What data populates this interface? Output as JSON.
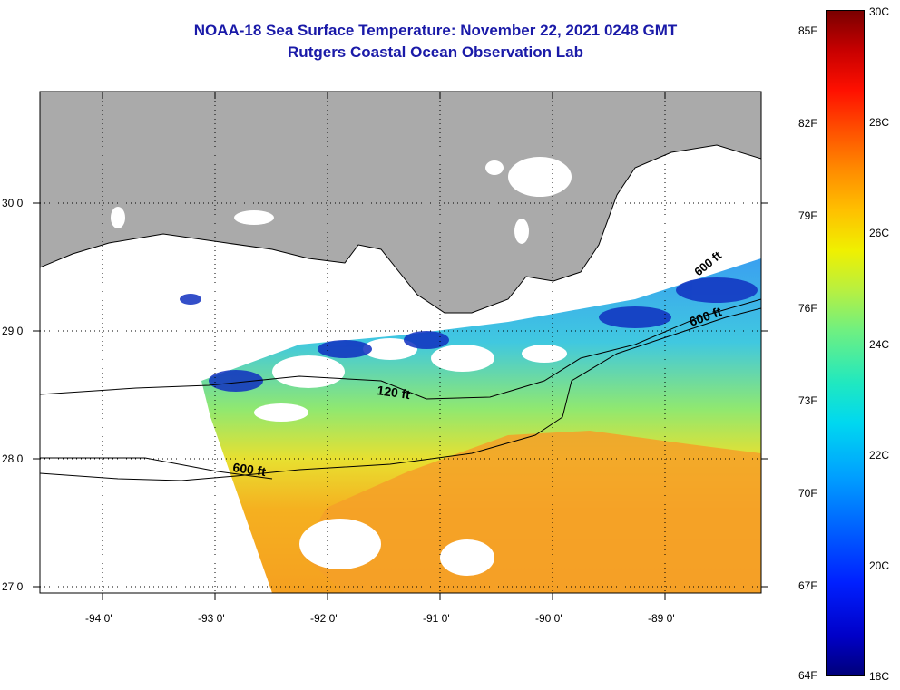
{
  "title": "NOAA-18 Sea Surface Temperature:  November 22, 2021 0248 GMT",
  "subtitle": "Rutgers Coastal Ocean Observation Lab",
  "map": {
    "lat_labels": [
      "30 0'",
      "29 0'",
      "28 0'",
      "27 0'"
    ],
    "lon_labels": [
      "-94 0'",
      "-93 0'",
      "-92 0'",
      "-91 0'",
      "-90 0'",
      "-89 0'"
    ],
    "contour_labels": [
      "120 ft",
      "600 ft",
      "600 ft",
      "600 ft"
    ],
    "colors": {
      "land": "#aaaaaa",
      "cloud": "#ffffff",
      "frame": "#000000"
    }
  },
  "colorbar": {
    "fahrenheit_labels": [
      "85F",
      "82F",
      "79F",
      "76F",
      "73F",
      "70F",
      "67F",
      "64F"
    ],
    "celsius_labels": [
      "30C",
      "28C",
      "26C",
      "24C",
      "22C",
      "20C",
      "18C"
    ],
    "range_c": [
      18,
      30
    ],
    "range_f": [
      64,
      85
    ]
  }
}
